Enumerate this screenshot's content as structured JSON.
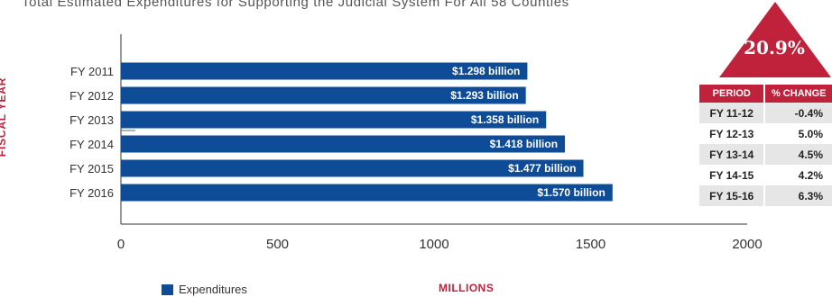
{
  "chart_data": {
    "type": "bar",
    "orientation": "horizontal",
    "title": "Total Estimated Expenditures for Supporting the Judicial System For All 58 Counties",
    "xlabel": "MILLIONS",
    "ylabel": "FISCAL YEAR",
    "categories": [
      "FY 2011",
      "FY 2012",
      "FY 2013",
      "FY 2014",
      "FY 2015",
      "FY 2016"
    ],
    "series": [
      {
        "name": "Expenditures",
        "values": [
          1298,
          1293,
          1358,
          1418,
          1477,
          1570
        ],
        "labels": [
          "$1.298 billion",
          "$1.293 billion",
          "$1.358 billion",
          "$1.418 billion",
          "$1.477 billion",
          "$1.570 billion"
        ],
        "color": "#0f4c97"
      }
    ],
    "xlim": [
      0,
      2000
    ],
    "xticks": [
      "0",
      "500",
      "1000",
      "1500",
      "2000"
    ],
    "grid": false,
    "legend": "bottom-left"
  },
  "callout": {
    "value": "20.9%",
    "color": "#c0223b"
  },
  "change_table": {
    "headers": [
      "PERIOD",
      "% CHANGE"
    ],
    "rows": [
      [
        "FY 11-12",
        "-0.4%"
      ],
      [
        "FY 12-13",
        "5.0%"
      ],
      [
        "FY 13-14",
        "4.5%"
      ],
      [
        "FY 14-15",
        "4.2%"
      ],
      [
        "FY 15-16",
        "6.3%"
      ]
    ]
  }
}
